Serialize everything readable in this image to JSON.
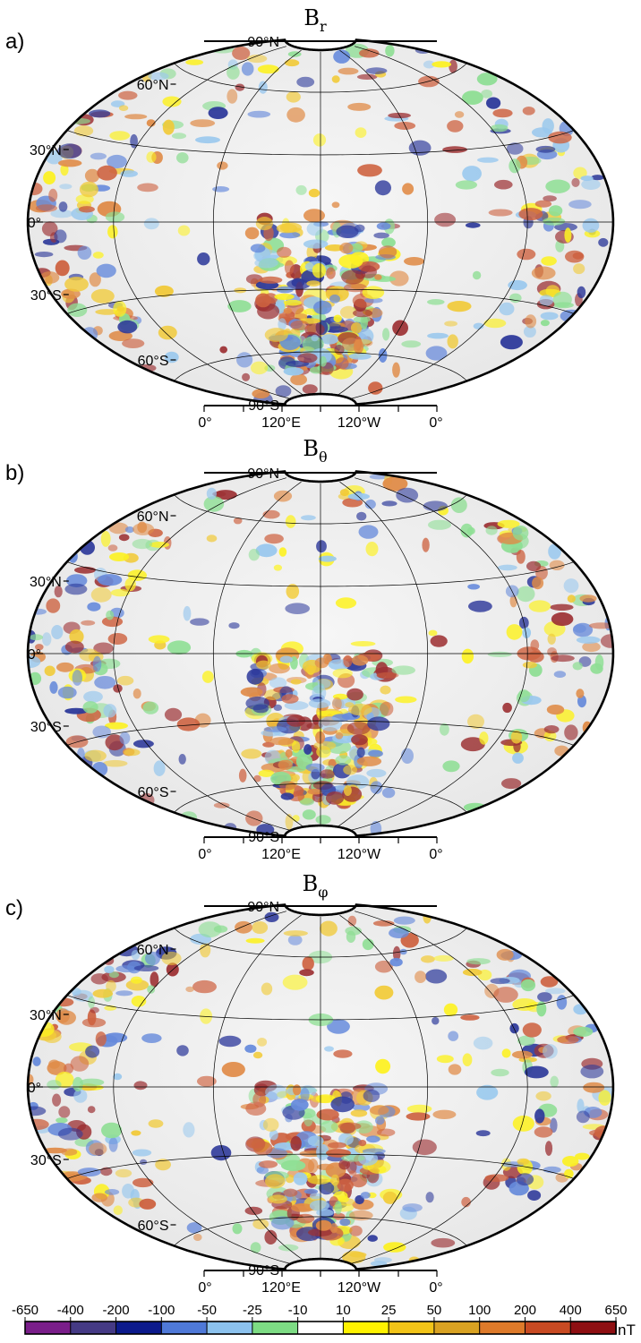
{
  "panels": [
    {
      "letter": "a)",
      "title_main": "B",
      "title_sub": "r",
      "lat_labels": [
        "90°N",
        "60°N",
        "30°N",
        "0°",
        "30°S",
        "60°S",
        "90°S"
      ],
      "lon_labels": [
        "0°",
        "120°E",
        "120°W",
        "0°"
      ]
    },
    {
      "letter": "b)",
      "title_main": "B",
      "title_sub": "θ",
      "lat_labels": [
        "90°N",
        "60°N",
        "30°N",
        "0°",
        "30°S",
        "60°S",
        "90°S"
      ],
      "lon_labels": [
        "0°",
        "120°E",
        "120°W",
        "0°"
      ]
    },
    {
      "letter": "c)",
      "title_main": "B",
      "title_sub": "φ",
      "lat_labels": [
        "90°N",
        "60°N",
        "30°N",
        "0°",
        "30°S",
        "60°S",
        "90°S"
      ],
      "lon_labels": [
        "0°",
        "120°E",
        "120°W",
        "0°"
      ]
    }
  ],
  "colorbar": {
    "tick_labels": [
      "-650",
      "-400",
      "-200",
      "-100",
      "-50",
      "-25",
      "-10",
      "10",
      "25",
      "50",
      "100",
      "200",
      "400",
      "650"
    ],
    "unit": "nT",
    "colors": [
      "#7a1e8a",
      "#453a85",
      "#0c1a8c",
      "#4f79d8",
      "#8cc2ee",
      "#7ddc84",
      "#ffffff",
      "#fff200",
      "#f2c418",
      "#d9a222",
      "#de7a2a",
      "#c84a22",
      "#8e0f12"
    ]
  }
}
